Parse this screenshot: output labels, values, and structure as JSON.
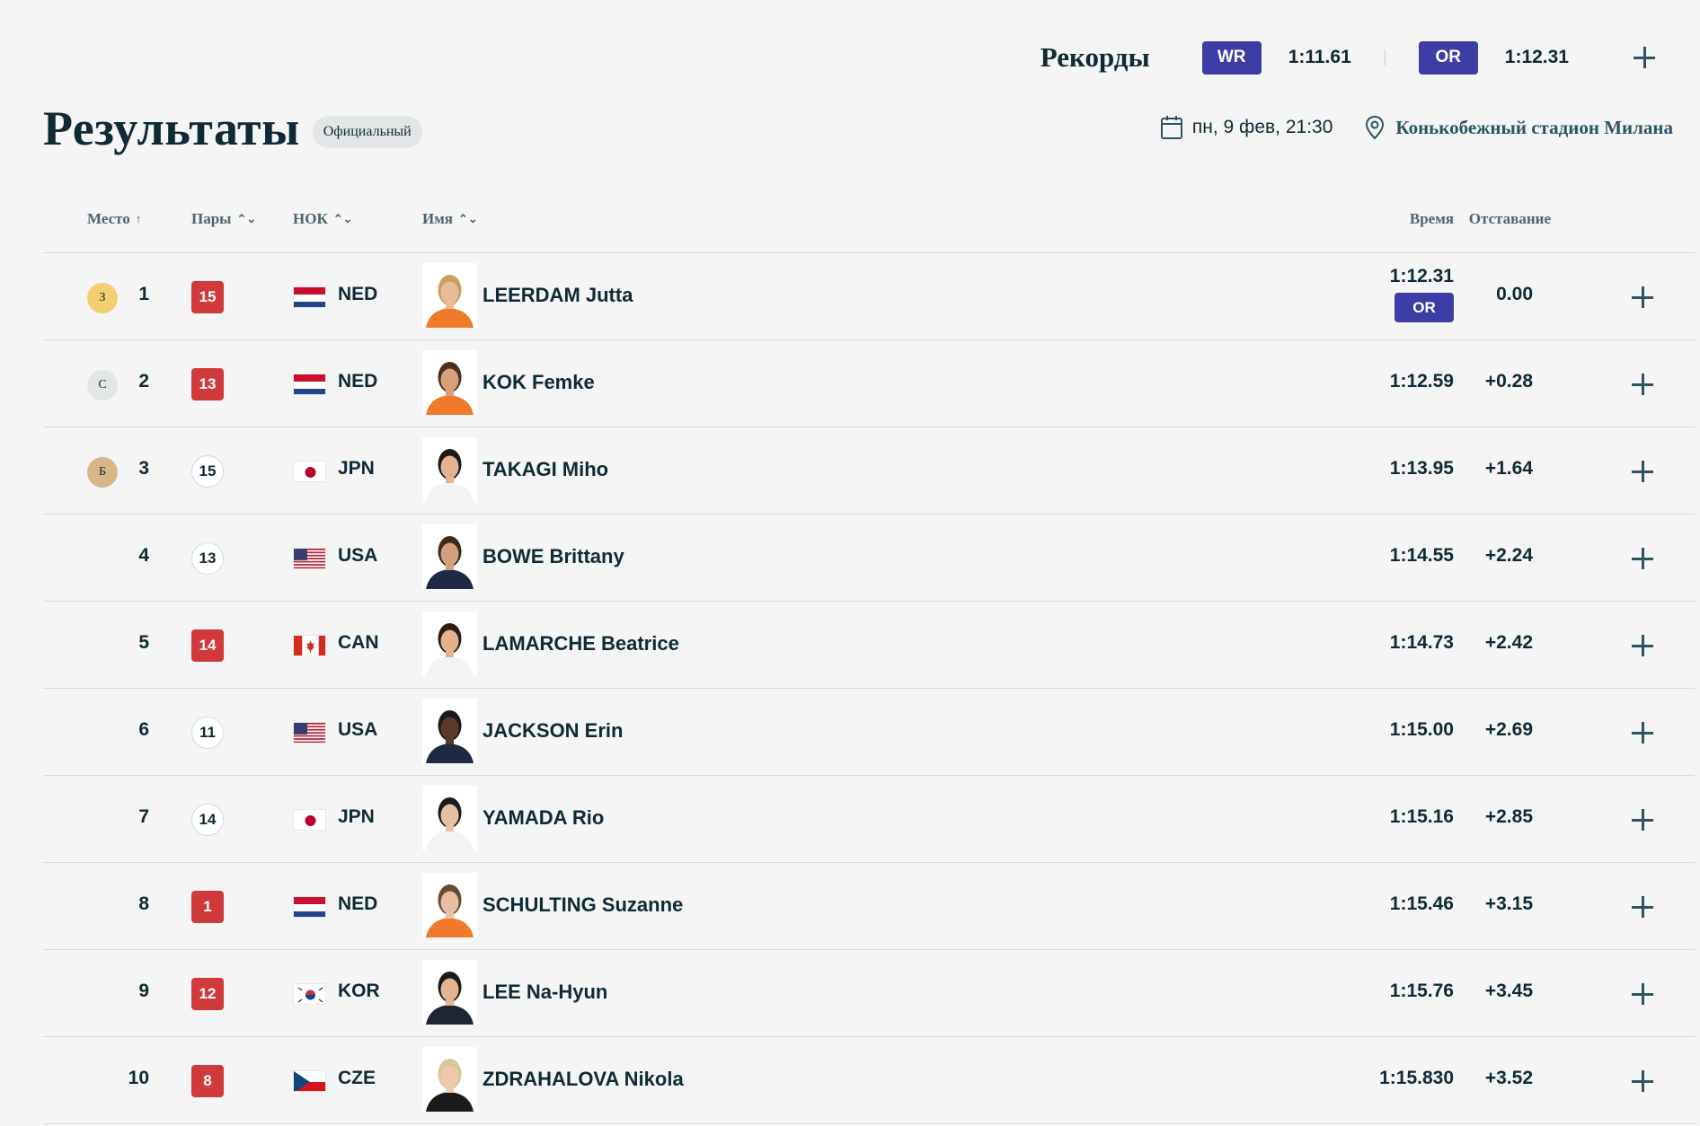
{
  "records": {
    "title": "Рекорды",
    "items": [
      {
        "badge": "WR",
        "time": "1:11.61"
      },
      {
        "badge": "OR",
        "time": "1:12.31"
      }
    ]
  },
  "header": {
    "title": "Результаты",
    "status": "Официальный",
    "date": "пн, 9 фев, 21:30",
    "venue": "Конькобежный стадион Милана"
  },
  "table": {
    "columns": {
      "rank": "Место",
      "pairs": "Пары",
      "noc": "НОК",
      "name": "Имя",
      "time": "Время",
      "gap": "Отставание"
    },
    "rows": [
      {
        "medal": "З",
        "medal_type": "gold",
        "rank": "1",
        "pair": "15",
        "pair_style": "red",
        "flag": "NED",
        "noc": "NED",
        "name": "LEERDAM Jutta",
        "time": "1:12.31",
        "record": "OR",
        "gap": "0.00"
      },
      {
        "medal": "С",
        "medal_type": "silver",
        "rank": "2",
        "pair": "13",
        "pair_style": "red",
        "flag": "NED",
        "noc": "NED",
        "name": "KOK Femke",
        "time": "1:12.59",
        "record": "",
        "gap": "+0.28"
      },
      {
        "medal": "Б",
        "medal_type": "bronze",
        "rank": "3",
        "pair": "15",
        "pair_style": "white",
        "flag": "JPN",
        "noc": "JPN",
        "name": "TAKAGI Miho",
        "time": "1:13.95",
        "record": "",
        "gap": "+1.64"
      },
      {
        "medal": "",
        "medal_type": "",
        "rank": "4",
        "pair": "13",
        "pair_style": "white",
        "flag": "USA",
        "noc": "USA",
        "name": "BOWE Brittany",
        "time": "1:14.55",
        "record": "",
        "gap": "+2.24"
      },
      {
        "medal": "",
        "medal_type": "",
        "rank": "5",
        "pair": "14",
        "pair_style": "red",
        "flag": "CAN",
        "noc": "CAN",
        "name": "LAMARCHE Beatrice",
        "time": "1:14.73",
        "record": "",
        "gap": "+2.42"
      },
      {
        "medal": "",
        "medal_type": "",
        "rank": "6",
        "pair": "11",
        "pair_style": "white",
        "flag": "USA",
        "noc": "USA",
        "name": "JACKSON Erin",
        "time": "1:15.00",
        "record": "",
        "gap": "+2.69"
      },
      {
        "medal": "",
        "medal_type": "",
        "rank": "7",
        "pair": "14",
        "pair_style": "white",
        "flag": "JPN",
        "noc": "JPN",
        "name": "YAMADA Rio",
        "time": "1:15.16",
        "record": "",
        "gap": "+2.85"
      },
      {
        "medal": "",
        "medal_type": "",
        "rank": "8",
        "pair": "1",
        "pair_style": "red",
        "flag": "NED",
        "noc": "NED",
        "name": "SCHULTING Suzanne",
        "time": "1:15.46",
        "record": "",
        "gap": "+3.15"
      },
      {
        "medal": "",
        "medal_type": "",
        "rank": "9",
        "pair": "12",
        "pair_style": "red",
        "flag": "KOR",
        "noc": "KOR",
        "name": "LEE Na-Hyun",
        "time": "1:15.76",
        "record": "",
        "gap": "+3.45"
      },
      {
        "medal": "",
        "medal_type": "",
        "rank": "10",
        "pair": "8",
        "pair_style": "red",
        "flag": "CZE",
        "noc": "CZE",
        "name": "ZDRAHALOVA Nikola",
        "time": "1:15.830",
        "record": "",
        "gap": "+3.52"
      }
    ]
  },
  "colors": {
    "record_badge": "#3d3ea5",
    "pair_red": "#d03a3a",
    "gold": "#f5cd72",
    "silver": "#e3e6e6",
    "bronze": "#d9b58a",
    "text_dark": "#0e2a36",
    "venue_link": "#2c5366"
  }
}
